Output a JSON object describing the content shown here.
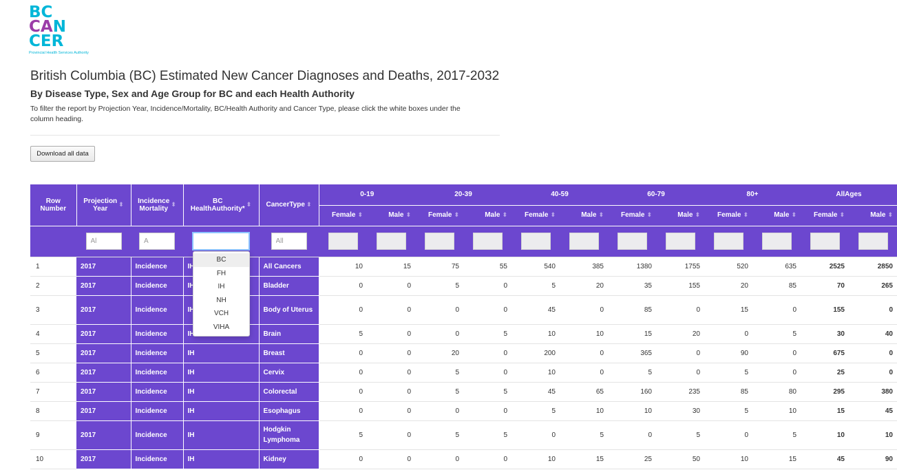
{
  "logo": {
    "line1": "BC",
    "line2a": "CA",
    "line2b": "N",
    "line3": "CER",
    "tagline": "Provincial Health Services Authority"
  },
  "page": {
    "title": "British Columbia (BC) Estimated New Cancer Diagnoses and Deaths, 2017-2032",
    "subtitle": "By Disease Type, Sex and Age Group for BC and each Health Authority",
    "note": "To filter the report by Projection Year, Incidence/Mortality, BC/Health Authority and Cancer Type, please click the white boxes under the column heading.",
    "download_label": "Download all data"
  },
  "table": {
    "headers": {
      "row_number_1": "Row",
      "row_number_2": "Number",
      "proj_year_1": "Projection",
      "proj_year_2": "Year",
      "inc_mort_1": "Incidence",
      "inc_mort_2": "Mortality",
      "ha_1": "BC",
      "ha_2": "HealthAuthority*",
      "cancer_type": "CancerType",
      "age_groups": [
        "0-19",
        "20-39",
        "40-59",
        "60-79",
        "80+",
        "AllAges"
      ],
      "female": "Female",
      "male": "Male"
    },
    "filters": {
      "proj_year": "Al",
      "inc_mort": "A",
      "ha": "",
      "cancer_type": "All"
    },
    "rows": [
      {
        "n": "1",
        "year": "2017",
        "im": "Incidence",
        "ha": "IH",
        "ct": "All Cancers",
        "v": [
          "10",
          "15",
          "75",
          "55",
          "540",
          "385",
          "1380",
          "1755",
          "520",
          "635",
          "2525",
          "2850"
        ]
      },
      {
        "n": "2",
        "year": "2017",
        "im": "Incidence",
        "ha": "IH",
        "ct": "Bladder",
        "v": [
          "0",
          "0",
          "5",
          "0",
          "5",
          "20",
          "35",
          "155",
          "20",
          "85",
          "70",
          "265"
        ]
      },
      {
        "n": "3",
        "year": "2017",
        "im": "Incidence",
        "ha": "IH",
        "ct": "Body of Uterus",
        "v": [
          "0",
          "0",
          "0",
          "0",
          "45",
          "0",
          "85",
          "0",
          "15",
          "0",
          "155",
          "0"
        ]
      },
      {
        "n": "4",
        "year": "2017",
        "im": "Incidence",
        "ha": "IH",
        "ct": "Brain",
        "v": [
          "5",
          "0",
          "0",
          "5",
          "10",
          "10",
          "15",
          "20",
          "0",
          "5",
          "30",
          "40"
        ]
      },
      {
        "n": "5",
        "year": "2017",
        "im": "Incidence",
        "ha": "IH",
        "ct": "Breast",
        "v": [
          "0",
          "0",
          "20",
          "0",
          "200",
          "0",
          "365",
          "0",
          "90",
          "0",
          "675",
          "0"
        ]
      },
      {
        "n": "6",
        "year": "2017",
        "im": "Incidence",
        "ha": "IH",
        "ct": "Cervix",
        "v": [
          "0",
          "0",
          "5",
          "0",
          "10",
          "0",
          "5",
          "0",
          "5",
          "0",
          "25",
          "0"
        ]
      },
      {
        "n": "7",
        "year": "2017",
        "im": "Incidence",
        "ha": "IH",
        "ct": "Colorectal",
        "v": [
          "0",
          "0",
          "5",
          "5",
          "45",
          "65",
          "160",
          "235",
          "85",
          "80",
          "295",
          "380"
        ]
      },
      {
        "n": "8",
        "year": "2017",
        "im": "Incidence",
        "ha": "IH",
        "ct": "Esophagus",
        "v": [
          "0",
          "0",
          "0",
          "0",
          "5",
          "10",
          "10",
          "30",
          "5",
          "10",
          "15",
          "45"
        ]
      },
      {
        "n": "9",
        "year": "2017",
        "im": "Incidence",
        "ha": "IH",
        "ct": "Hodgkin Lymphoma",
        "v": [
          "5",
          "0",
          "5",
          "5",
          "0",
          "5",
          "0",
          "5",
          "0",
          "5",
          "10",
          "10"
        ]
      },
      {
        "n": "10",
        "year": "2017",
        "im": "Incidence",
        "ha": "IH",
        "ct": "Kidney",
        "v": [
          "0",
          "0",
          "0",
          "0",
          "10",
          "15",
          "25",
          "50",
          "10",
          "15",
          "45",
          "90"
        ]
      }
    ]
  },
  "dropdown": {
    "options": [
      "BC",
      "FH",
      "IH",
      "NH",
      "VCH",
      "VIHA"
    ],
    "highlighted": "BC"
  },
  "colors": {
    "header_purple": "#6c47cf",
    "logo_cyan": "#00b6d8",
    "logo_magenta": "#9b3da8"
  },
  "icons": {
    "sort": "sort-arrows-icon"
  }
}
